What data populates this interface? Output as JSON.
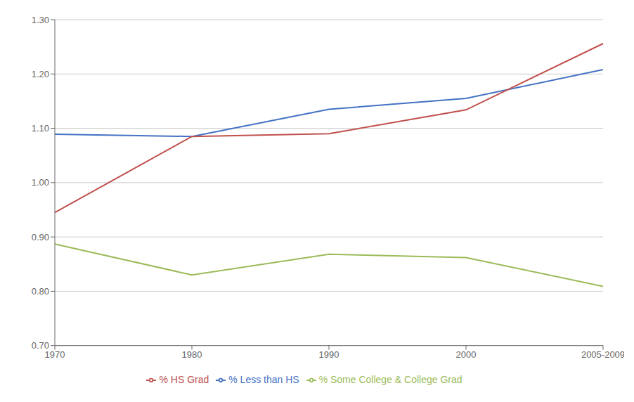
{
  "chart_data": {
    "type": "line",
    "categories": [
      "1970",
      "1980",
      "1990",
      "2000",
      "2005-2009"
    ],
    "series": [
      {
        "name": "% Less than HS",
        "color": "#4472C4",
        "values": [
          1.089,
          1.085,
          1.135,
          1.155,
          1.208
        ]
      },
      {
        "name": "% HS Grad",
        "color": "#C0504D",
        "values": [
          0.945,
          1.085,
          1.09,
          1.134,
          1.256
        ]
      },
      {
        "name": "% Some College & College Grad",
        "color": "#9BBB59",
        "values": [
          0.887,
          0.83,
          0.868,
          0.862,
          0.809
        ]
      }
    ],
    "ylim": [
      0.7,
      1.3
    ],
    "yticks": [
      {
        "value": 0.7,
        "label": "0.70"
      },
      {
        "value": 0.8,
        "label": "0.80"
      },
      {
        "value": 0.9,
        "label": "0.90"
      },
      {
        "value": 1.0,
        "label": "1.00"
      },
      {
        "value": 1.1,
        "label": "1.10"
      },
      {
        "value": 1.2,
        "label": "1.20"
      },
      {
        "value": 1.3,
        "label": "1.30"
      }
    ],
    "grid": true,
    "legend": "bottom"
  }
}
